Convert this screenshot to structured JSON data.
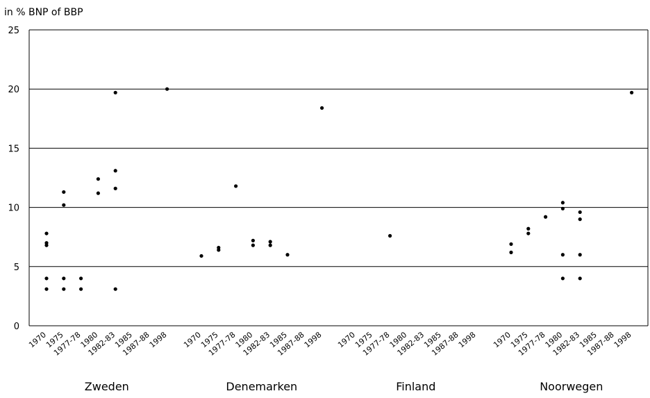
{
  "chart_data": {
    "type": "scatter",
    "ylabel": "in % BNP of BBP",
    "ylim": [
      0,
      25
    ],
    "yticks": [
      "0",
      "5",
      "10",
      "15",
      "20",
      "25"
    ],
    "grid": "horizontal",
    "categories": [
      "1970",
      "1975",
      "1977-78",
      "1980",
      "1982-83",
      "1985",
      "1987-88",
      "1998"
    ],
    "groups": [
      {
        "name": "Zweden",
        "points": [
          {
            "x": "1970",
            "y": 7.8
          },
          {
            "x": "1970",
            "y": 7.0
          },
          {
            "x": "1970",
            "y": 6.8
          },
          {
            "x": "1970",
            "y": 4.0
          },
          {
            "x": "1970",
            "y": 3.1
          },
          {
            "x": "1975",
            "y": 11.3
          },
          {
            "x": "1975",
            "y": 10.2
          },
          {
            "x": "1975",
            "y": 4.0
          },
          {
            "x": "1975",
            "y": 3.1
          },
          {
            "x": "1977-78",
            "y": 4.0
          },
          {
            "x": "1977-78",
            "y": 3.1
          },
          {
            "x": "1980",
            "y": 12.4
          },
          {
            "x": "1980",
            "y": 11.2
          },
          {
            "x": "1982-83",
            "y": 19.7
          },
          {
            "x": "1982-83",
            "y": 13.1
          },
          {
            "x": "1982-83",
            "y": 11.6
          },
          {
            "x": "1982-83",
            "y": 3.1
          },
          {
            "x": "1998",
            "y": 20.0
          }
        ]
      },
      {
        "name": "Denemarken",
        "points": [
          {
            "x": "1970",
            "y": 5.9
          },
          {
            "x": "1975",
            "y": 6.6
          },
          {
            "x": "1975",
            "y": 6.4
          },
          {
            "x": "1977-78",
            "y": 11.8
          },
          {
            "x": "1980",
            "y": 7.2
          },
          {
            "x": "1980",
            "y": 6.8
          },
          {
            "x": "1982-83",
            "y": 7.1
          },
          {
            "x": "1982-83",
            "y": 6.8
          },
          {
            "x": "1985",
            "y": 6.0
          },
          {
            "x": "1998",
            "y": 18.4
          }
        ]
      },
      {
        "name": "Finland",
        "points": [
          {
            "x": "1977-78",
            "y": 7.6
          }
        ]
      },
      {
        "name": "Noorwegen",
        "points": [
          {
            "x": "1970",
            "y": 6.9
          },
          {
            "x": "1970",
            "y": 6.2
          },
          {
            "x": "1975",
            "y": 8.2
          },
          {
            "x": "1975",
            "y": 7.8
          },
          {
            "x": "1977-78",
            "y": 9.2
          },
          {
            "x": "1980",
            "y": 10.4
          },
          {
            "x": "1980",
            "y": 9.9
          },
          {
            "x": "1980",
            "y": 6.0
          },
          {
            "x": "1980",
            "y": 4.0
          },
          {
            "x": "1982-83",
            "y": 9.6
          },
          {
            "x": "1982-83",
            "y": 9.0
          },
          {
            "x": "1982-83",
            "y": 6.0
          },
          {
            "x": "1982-83",
            "y": 4.0
          },
          {
            "x": "1998",
            "y": 19.7
          }
        ]
      }
    ]
  }
}
